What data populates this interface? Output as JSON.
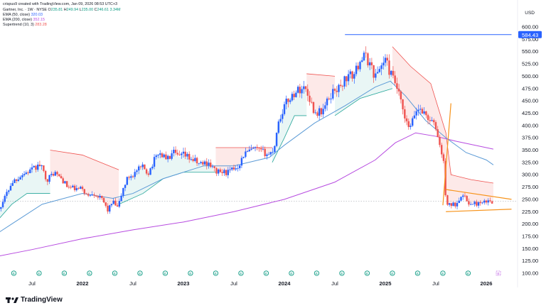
{
  "header": {
    "credit": "crispus9 created with TradingView.com, Jan 09, 2026 08:53 UTC+3",
    "symbol": "Gartner, Inc. · 1W · NYSE",
    "o_label": "O",
    "o": "235.81",
    "h_label": "H",
    "h": "249.94",
    "l_label": "L",
    "l": "235.00",
    "c_label": "C",
    "c": "246.61",
    "volume": "3.34M",
    "ema50_label": "EMA (50, close)",
    "ema50": "320.03",
    "ema200_label": "EMA (200, close)",
    "ema200": "352.15",
    "supertrend_label": "Supertrend (10, 3)",
    "supertrend": "283.28"
  },
  "currency": "USD",
  "brand": "TradingView",
  "price_tag": "584.43",
  "colors": {
    "up": "#2962ff",
    "down": "#ef5350",
    "ema50": "#5c9bd6",
    "ema200": "#b74be0",
    "st_up": "#26a69a",
    "st_down": "#ef5350",
    "triangle": "#f7931a",
    "accent": "#2962ff"
  },
  "chart_data": {
    "type": "candlestick",
    "ylim": [
      100,
      600
    ],
    "yticks": [
      100,
      125,
      150,
      175,
      200,
      225,
      250,
      275,
      300,
      325,
      350,
      375,
      400,
      425,
      450,
      475,
      500,
      525,
      550,
      575,
      600
    ],
    "xticks": [
      {
        "label": "Jul",
        "t": 0.5
      },
      {
        "label": "2022",
        "t": 1.0
      },
      {
        "label": "Jul",
        "t": 1.5
      },
      {
        "label": "2023",
        "t": 2.0
      },
      {
        "label": "Jul",
        "t": 2.5
      },
      {
        "label": "2024",
        "t": 3.0
      },
      {
        "label": "Jul",
        "t": 3.5
      },
      {
        "label": "2025",
        "t": 4.0
      },
      {
        "label": "Jul",
        "t": 4.5
      },
      {
        "label": "2026",
        "t": 5.0
      }
    ],
    "price_path": [
      [
        0.0,
        185
      ],
      [
        0.05,
        192
      ],
      [
        0.1,
        200
      ],
      [
        0.15,
        225
      ],
      [
        0.2,
        240
      ],
      [
        0.3,
        285
      ],
      [
        0.4,
        300
      ],
      [
        0.5,
        310
      ],
      [
        0.58,
        320
      ],
      [
        0.65,
        290
      ],
      [
        0.72,
        305
      ],
      [
        0.8,
        290
      ],
      [
        0.85,
        275
      ],
      [
        0.95,
        270
      ],
      [
        1.0,
        272
      ],
      [
        1.05,
        255
      ],
      [
        1.1,
        265
      ],
      [
        1.2,
        248
      ],
      [
        1.25,
        228
      ],
      [
        1.3,
        245
      ],
      [
        1.35,
        232
      ],
      [
        1.4,
        270
      ],
      [
        1.45,
        295
      ],
      [
        1.5,
        300
      ],
      [
        1.55,
        310
      ],
      [
        1.6,
        315
      ],
      [
        1.65,
        303
      ],
      [
        1.7,
        325
      ],
      [
        1.75,
        345
      ],
      [
        1.8,
        338
      ],
      [
        1.85,
        332
      ],
      [
        1.9,
        345
      ],
      [
        1.95,
        335
      ],
      [
        2.0,
        340
      ],
      [
        2.05,
        335
      ],
      [
        2.1,
        330
      ],
      [
        2.15,
        322
      ],
      [
        2.25,
        325
      ],
      [
        2.3,
        310
      ],
      [
        2.35,
        305
      ],
      [
        2.45,
        305
      ],
      [
        2.55,
        320
      ],
      [
        2.6,
        342
      ],
      [
        2.7,
        352
      ],
      [
        2.8,
        345
      ],
      [
        2.85,
        340
      ],
      [
        2.9,
        355
      ],
      [
        2.93,
        400
      ],
      [
        3.0,
        440
      ],
      [
        3.05,
        455
      ],
      [
        3.12,
        470
      ],
      [
        3.2,
        478
      ],
      [
        3.25,
        455
      ],
      [
        3.3,
        425
      ],
      [
        3.38,
        430
      ],
      [
        3.45,
        458
      ],
      [
        3.5,
        475
      ],
      [
        3.55,
        475
      ],
      [
        3.6,
        495
      ],
      [
        3.7,
        505
      ],
      [
        3.75,
        535
      ],
      [
        3.8,
        540
      ],
      [
        3.85,
        525
      ],
      [
        3.9,
        498
      ],
      [
        3.95,
        520
      ],
      [
        4.0,
        535
      ],
      [
        4.05,
        505
      ],
      [
        4.1,
        485
      ],
      [
        4.15,
        450
      ],
      [
        4.2,
        405
      ],
      [
        4.25,
        395
      ],
      [
        4.3,
        430
      ],
      [
        4.35,
        435
      ],
      [
        4.4,
        420
      ],
      [
        4.45,
        410
      ],
      [
        4.5,
        395
      ],
      [
        4.55,
        350
      ],
      [
        4.58,
        320
      ],
      [
        4.6,
        248
      ],
      [
        4.62,
        238
      ],
      [
        4.7,
        240
      ],
      [
        4.75,
        260
      ],
      [
        4.8,
        250
      ],
      [
        4.85,
        238
      ],
      [
        4.9,
        242
      ],
      [
        4.95,
        240
      ],
      [
        5.0,
        245
      ],
      [
        5.05,
        246
      ]
    ],
    "candles_per_year": 52,
    "start_t": 0.0,
    "end_t": 5.05,
    "ema50": [
      [
        0.0,
        160
      ],
      [
        0.3,
        200
      ],
      [
        0.6,
        240
      ],
      [
        1.0,
        262
      ],
      [
        1.3,
        252
      ],
      [
        1.5,
        262
      ],
      [
        1.8,
        292
      ],
      [
        2.2,
        318
      ],
      [
        2.5,
        318
      ],
      [
        2.85,
        335
      ],
      [
        3.0,
        360
      ],
      [
        3.3,
        405
      ],
      [
        3.6,
        440
      ],
      [
        3.9,
        478
      ],
      [
        4.05,
        490
      ],
      [
        4.2,
        460
      ],
      [
        4.4,
        410
      ],
      [
        4.6,
        375
      ],
      [
        4.8,
        345
      ],
      [
        5.0,
        330
      ],
      [
        5.07,
        320
      ]
    ],
    "ema200": [
      [
        0.0,
        128
      ],
      [
        0.5,
        148
      ],
      [
        1.0,
        170
      ],
      [
        1.5,
        188
      ],
      [
        2.0,
        204
      ],
      [
        2.5,
        225
      ],
      [
        3.0,
        250
      ],
      [
        3.5,
        285
      ],
      [
        3.9,
        330
      ],
      [
        4.1,
        365
      ],
      [
        4.3,
        385
      ],
      [
        4.5,
        378
      ],
      [
        4.7,
        368
      ],
      [
        5.07,
        352
      ]
    ],
    "supertrend": [
      {
        "t0": 0.0,
        "t1": 0.68,
        "side": "up",
        "path": [
          [
            0.0,
            180
          ],
          [
            0.15,
            205
          ],
          [
            0.3,
            240
          ],
          [
            0.45,
            262
          ],
          [
            0.68,
            262
          ]
        ]
      },
      {
        "t0": 0.68,
        "t1": 1.36,
        "side": "down",
        "path": [
          [
            0.68,
            350
          ],
          [
            1.0,
            340
          ],
          [
            1.36,
            310
          ]
        ]
      },
      {
        "t0": 1.36,
        "t1": 2.32,
        "side": "up",
        "path": [
          [
            1.36,
            240
          ],
          [
            1.6,
            262
          ],
          [
            1.8,
            292
          ],
          [
            2.0,
            305
          ],
          [
            2.32,
            305
          ]
        ]
      },
      {
        "t0": 2.32,
        "t1": 2.88,
        "side": "down",
        "path": [
          [
            2.32,
            355
          ],
          [
            2.6,
            355
          ],
          [
            2.88,
            355
          ]
        ]
      },
      {
        "t0": 2.88,
        "t1": 3.22,
        "side": "up",
        "path": [
          [
            2.88,
            325
          ],
          [
            3.0,
            375
          ],
          [
            3.1,
            420
          ],
          [
            3.22,
            420
          ]
        ]
      },
      {
        "t0": 3.22,
        "t1": 3.5,
        "side": "down",
        "path": [
          [
            3.22,
            505
          ],
          [
            3.5,
            500
          ]
        ]
      },
      {
        "t0": 3.5,
        "t1": 4.07,
        "side": "up",
        "path": [
          [
            3.5,
            420
          ],
          [
            3.75,
            455
          ],
          [
            4.07,
            475
          ]
        ]
      },
      {
        "t0": 4.07,
        "t1": 5.07,
        "side": "down",
        "path": [
          [
            4.07,
            560
          ],
          [
            4.25,
            520
          ],
          [
            4.45,
            485
          ],
          [
            4.6,
            385
          ],
          [
            4.65,
            300
          ],
          [
            4.85,
            290
          ],
          [
            5.07,
            283
          ]
        ]
      }
    ],
    "hline": 584.43,
    "hline_t": [
      3.6,
      5.25
    ],
    "triangle": {
      "pole": [
        [
          4.57,
          238
        ],
        [
          4.65,
          445
        ]
      ],
      "upper": [
        [
          4.6,
          270
        ],
        [
          5.25,
          250
        ]
      ],
      "lower": [
        [
          4.6,
          225
        ],
        [
          5.25,
          230
        ]
      ]
    },
    "earnings_t": [
      0.07,
      0.32,
      0.57,
      0.82,
      1.07,
      1.32,
      1.57,
      1.82,
      2.07,
      2.32,
      2.57,
      2.82,
      3.07,
      3.32,
      3.57,
      3.82,
      4.07,
      4.32,
      4.57,
      4.82
    ],
    "earnings_next_t": 5.12,
    "earnings_marker": "E"
  }
}
